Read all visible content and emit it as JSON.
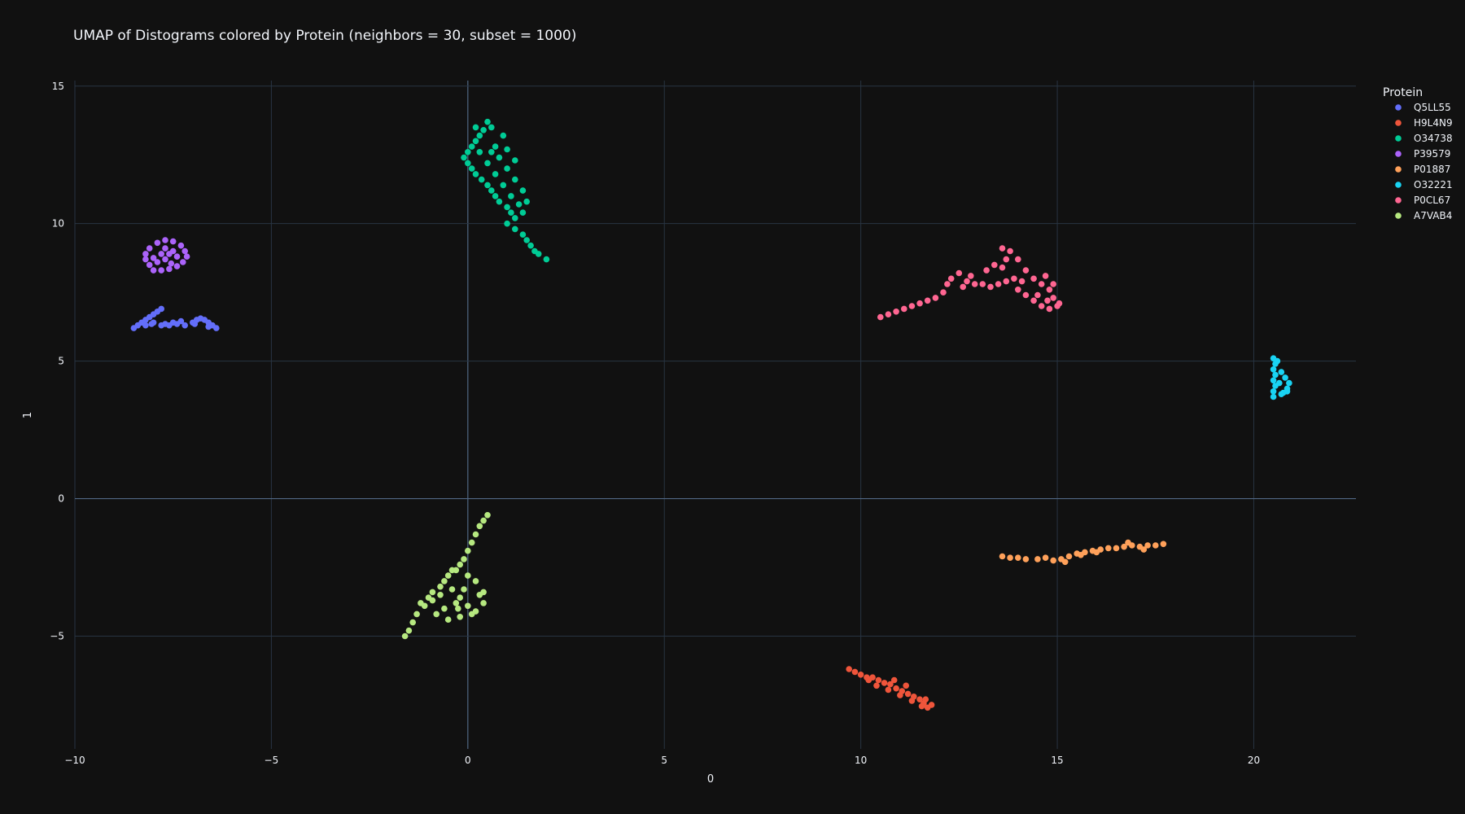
{
  "chart_data": {
    "type": "scatter",
    "title": "UMAP of Distograms colored by Protein (neighbors = 30, subset = 1000)",
    "xlabel": "0",
    "ylabel": "1",
    "xlim": [
      -10,
      22.6
    ],
    "ylim": [
      -9.1,
      15.2
    ],
    "xticks": [
      -10,
      -5,
      0,
      5,
      10,
      15,
      20
    ],
    "xtick_labels": [
      "−10",
      "−5",
      "0",
      "5",
      "10",
      "15",
      "20"
    ],
    "yticks": [
      -5,
      0,
      5,
      10,
      15
    ],
    "ytick_labels": [
      "−5",
      "0",
      "5",
      "10",
      "15"
    ],
    "grid": true,
    "legend": {
      "title": "Protein",
      "placement": "top-right outside"
    },
    "series": [
      {
        "name": "Q5LL55",
        "color": "#636efa",
        "points": [
          [
            -8.5,
            6.2
          ],
          [
            -8.4,
            6.3
          ],
          [
            -8.3,
            6.4
          ],
          [
            -8.2,
            6.5
          ],
          [
            -8.1,
            6.6
          ],
          [
            -8.0,
            6.7
          ],
          [
            -7.9,
            6.8
          ],
          [
            -7.8,
            6.9
          ],
          [
            -8.2,
            6.3
          ],
          [
            -8.0,
            6.4
          ],
          [
            -7.8,
            6.3
          ],
          [
            -7.6,
            6.3
          ],
          [
            -7.4,
            6.35
          ],
          [
            -7.2,
            6.3
          ],
          [
            -7.0,
            6.4
          ],
          [
            -6.9,
            6.5
          ],
          [
            -6.8,
            6.55
          ],
          [
            -6.7,
            6.5
          ],
          [
            -6.6,
            6.4
          ],
          [
            -6.5,
            6.3
          ],
          [
            -6.4,
            6.2
          ],
          [
            -7.5,
            6.4
          ],
          [
            -7.3,
            6.45
          ],
          [
            -6.95,
            6.35
          ],
          [
            -8.05,
            6.35
          ],
          [
            -7.7,
            6.35
          ],
          [
            -6.6,
            6.25
          ]
        ]
      },
      {
        "name": "H9L4N9",
        "color": "#ef553b",
        "points": [
          [
            9.7,
            -6.2
          ],
          [
            9.85,
            -6.3
          ],
          [
            10.0,
            -6.4
          ],
          [
            10.15,
            -6.5
          ],
          [
            10.3,
            -6.5
          ],
          [
            10.45,
            -6.6
          ],
          [
            10.6,
            -6.7
          ],
          [
            10.75,
            -6.75
          ],
          [
            10.9,
            -6.9
          ],
          [
            11.05,
            -7.0
          ],
          [
            11.2,
            -7.1
          ],
          [
            11.35,
            -7.2
          ],
          [
            11.5,
            -7.3
          ],
          [
            11.6,
            -7.45
          ],
          [
            11.7,
            -7.6
          ],
          [
            11.8,
            -7.5
          ],
          [
            10.4,
            -6.8
          ],
          [
            10.7,
            -6.95
          ],
          [
            11.0,
            -7.15
          ],
          [
            11.3,
            -7.35
          ],
          [
            11.55,
            -7.55
          ],
          [
            10.2,
            -6.6
          ],
          [
            10.85,
            -6.6
          ],
          [
            11.15,
            -6.8
          ],
          [
            11.65,
            -7.3
          ]
        ]
      },
      {
        "name": "O34738",
        "color": "#00cc96",
        "points": [
          [
            0.5,
            13.7
          ],
          [
            0.6,
            13.5
          ],
          [
            0.4,
            13.4
          ],
          [
            0.3,
            13.2
          ],
          [
            0.2,
            13.0
          ],
          [
            0.1,
            12.8
          ],
          [
            0.0,
            12.6
          ],
          [
            -0.1,
            12.4
          ],
          [
            0.0,
            12.2
          ],
          [
            0.1,
            12.0
          ],
          [
            0.2,
            11.8
          ],
          [
            0.35,
            11.6
          ],
          [
            0.5,
            11.4
          ],
          [
            0.6,
            11.2
          ],
          [
            0.7,
            11.0
          ],
          [
            0.8,
            10.8
          ],
          [
            1.0,
            10.6
          ],
          [
            1.1,
            10.4
          ],
          [
            1.2,
            10.2
          ],
          [
            1.0,
            10.0
          ],
          [
            1.2,
            9.8
          ],
          [
            1.4,
            9.6
          ],
          [
            1.5,
            9.4
          ],
          [
            1.6,
            9.2
          ],
          [
            1.7,
            9.0
          ],
          [
            1.8,
            8.9
          ],
          [
            2.0,
            8.7
          ],
          [
            0.8,
            12.4
          ],
          [
            1.0,
            12.0
          ],
          [
            1.2,
            11.6
          ],
          [
            1.4,
            11.2
          ],
          [
            1.5,
            10.8
          ],
          [
            1.4,
            10.4
          ],
          [
            0.7,
            12.8
          ],
          [
            0.9,
            13.2
          ],
          [
            0.3,
            12.6
          ],
          [
            0.5,
            12.2
          ],
          [
            0.7,
            11.8
          ],
          [
            0.9,
            11.4
          ],
          [
            1.1,
            11.0
          ],
          [
            1.3,
            10.7
          ],
          [
            0.2,
            13.5
          ],
          [
            0.6,
            12.6
          ],
          [
            1.0,
            12.7
          ],
          [
            1.2,
            12.3
          ]
        ]
      },
      {
        "name": "P39579",
        "color": "#ab63fa",
        "points": [
          [
            -8.0,
            8.3
          ],
          [
            -8.1,
            8.5
          ],
          [
            -8.2,
            8.7
          ],
          [
            -8.2,
            8.9
          ],
          [
            -8.1,
            9.1
          ],
          [
            -7.9,
            9.3
          ],
          [
            -7.7,
            9.4
          ],
          [
            -7.5,
            9.35
          ],
          [
            -7.3,
            9.2
          ],
          [
            -7.2,
            9.0
          ],
          [
            -7.15,
            8.8
          ],
          [
            -7.25,
            8.6
          ],
          [
            -7.4,
            8.45
          ],
          [
            -7.6,
            8.35
          ],
          [
            -7.8,
            8.3
          ],
          [
            -7.7,
            8.7
          ],
          [
            -7.6,
            8.9
          ],
          [
            -7.5,
            9.0
          ],
          [
            -7.8,
            8.9
          ],
          [
            -7.9,
            8.6
          ],
          [
            -7.4,
            8.8
          ],
          [
            -7.7,
            9.1
          ],
          [
            -8.0,
            8.75
          ],
          [
            -7.55,
            8.55
          ]
        ]
      },
      {
        "name": "P01887",
        "color": "#ffa15a",
        "points": [
          [
            13.6,
            -2.1
          ],
          [
            13.8,
            -2.15
          ],
          [
            14.0,
            -2.15
          ],
          [
            14.2,
            -2.2
          ],
          [
            14.5,
            -2.2
          ],
          [
            14.7,
            -2.15
          ],
          [
            14.9,
            -2.25
          ],
          [
            15.1,
            -2.2
          ],
          [
            15.3,
            -2.1
          ],
          [
            15.5,
            -2.0
          ],
          [
            15.7,
            -1.95
          ],
          [
            15.9,
            -1.9
          ],
          [
            16.1,
            -1.85
          ],
          [
            16.3,
            -1.8
          ],
          [
            16.5,
            -1.8
          ],
          [
            16.7,
            -1.75
          ],
          [
            16.9,
            -1.7
          ],
          [
            17.1,
            -1.75
          ],
          [
            17.3,
            -1.7
          ],
          [
            17.5,
            -1.7
          ],
          [
            17.7,
            -1.65
          ],
          [
            15.2,
            -2.3
          ],
          [
            15.6,
            -2.05
          ],
          [
            16.0,
            -1.95
          ],
          [
            16.8,
            -1.6
          ],
          [
            17.2,
            -1.85
          ]
        ]
      },
      {
        "name": "O32221",
        "color": "#19d3f3",
        "points": [
          [
            20.5,
            5.1
          ],
          [
            20.55,
            4.9
          ],
          [
            20.5,
            4.7
          ],
          [
            20.55,
            4.5
          ],
          [
            20.5,
            4.3
          ],
          [
            20.55,
            4.1
          ],
          [
            20.5,
            3.9
          ],
          [
            20.5,
            3.7
          ],
          [
            20.7,
            3.8
          ],
          [
            20.85,
            4.0
          ],
          [
            20.9,
            4.2
          ],
          [
            20.8,
            4.4
          ],
          [
            20.7,
            4.6
          ],
          [
            20.6,
            5.0
          ],
          [
            20.65,
            4.2
          ],
          [
            20.75,
            3.85
          ],
          [
            20.85,
            3.9
          ]
        ]
      },
      {
        "name": "P0CL67",
        "color": "#ff6692",
        "points": [
          [
            10.5,
            6.6
          ],
          [
            10.7,
            6.7
          ],
          [
            10.9,
            6.8
          ],
          [
            11.1,
            6.9
          ],
          [
            11.3,
            7.0
          ],
          [
            11.5,
            7.1
          ],
          [
            11.7,
            7.2
          ],
          [
            11.9,
            7.3
          ],
          [
            12.1,
            7.5
          ],
          [
            12.2,
            7.8
          ],
          [
            12.3,
            8.0
          ],
          [
            12.5,
            8.2
          ],
          [
            12.7,
            7.9
          ],
          [
            12.9,
            7.8
          ],
          [
            13.1,
            7.8
          ],
          [
            13.3,
            7.7
          ],
          [
            13.5,
            7.8
          ],
          [
            13.7,
            7.9
          ],
          [
            13.9,
            8.0
          ],
          [
            13.6,
            8.4
          ],
          [
            13.7,
            8.7
          ],
          [
            13.8,
            9.0
          ],
          [
            13.6,
            9.1
          ],
          [
            14.0,
            8.7
          ],
          [
            14.2,
            8.3
          ],
          [
            14.4,
            8.0
          ],
          [
            14.6,
            7.8
          ],
          [
            14.8,
            7.6
          ],
          [
            14.9,
            7.3
          ],
          [
            15.0,
            7.0
          ],
          [
            14.8,
            6.9
          ],
          [
            14.6,
            7.0
          ],
          [
            14.4,
            7.2
          ],
          [
            14.2,
            7.4
          ],
          [
            14.0,
            7.6
          ],
          [
            12.8,
            8.1
          ],
          [
            13.2,
            8.3
          ],
          [
            14.9,
            7.8
          ],
          [
            14.7,
            8.1
          ],
          [
            15.05,
            7.1
          ],
          [
            12.6,
            7.7
          ],
          [
            13.4,
            8.5
          ],
          [
            14.1,
            7.9
          ],
          [
            14.5,
            7.4
          ],
          [
            14.75,
            7.2
          ]
        ]
      },
      {
        "name": "A7VAB4",
        "color": "#b6e880",
        "points": [
          [
            0.5,
            -0.6
          ],
          [
            0.4,
            -0.8
          ],
          [
            0.3,
            -1.0
          ],
          [
            0.2,
            -1.3
          ],
          [
            0.1,
            -1.6
          ],
          [
            0.0,
            -1.9
          ],
          [
            -0.1,
            -2.2
          ],
          [
            -0.2,
            -2.4
          ],
          [
            -0.3,
            -2.6
          ],
          [
            -0.5,
            -2.8
          ],
          [
            -0.6,
            -3.0
          ],
          [
            -0.7,
            -3.2
          ],
          [
            -0.9,
            -3.4
          ],
          [
            -1.0,
            -3.6
          ],
          [
            -1.2,
            -3.8
          ],
          [
            -1.3,
            -4.2
          ],
          [
            -1.4,
            -4.5
          ],
          [
            -1.5,
            -4.8
          ],
          [
            -1.6,
            -5.0
          ],
          [
            -0.4,
            -3.3
          ],
          [
            -0.2,
            -3.6
          ],
          [
            0.0,
            -3.9
          ],
          [
            0.2,
            -4.1
          ],
          [
            0.4,
            -3.8
          ],
          [
            0.4,
            -3.4
          ],
          [
            0.2,
            -3.0
          ],
          [
            0.0,
            -2.8
          ],
          [
            -0.3,
            -3.8
          ],
          [
            -0.6,
            -4.0
          ],
          [
            -0.8,
            -4.2
          ],
          [
            -0.5,
            -4.4
          ],
          [
            -0.2,
            -4.3
          ],
          [
            0.1,
            -4.2
          ],
          [
            -0.9,
            -3.7
          ],
          [
            -0.7,
            -3.5
          ],
          [
            -0.1,
            -3.3
          ],
          [
            0.3,
            -3.5
          ],
          [
            -0.4,
            -2.6
          ],
          [
            -0.25,
            -4.0
          ],
          [
            -1.1,
            -3.9
          ]
        ]
      }
    ]
  }
}
